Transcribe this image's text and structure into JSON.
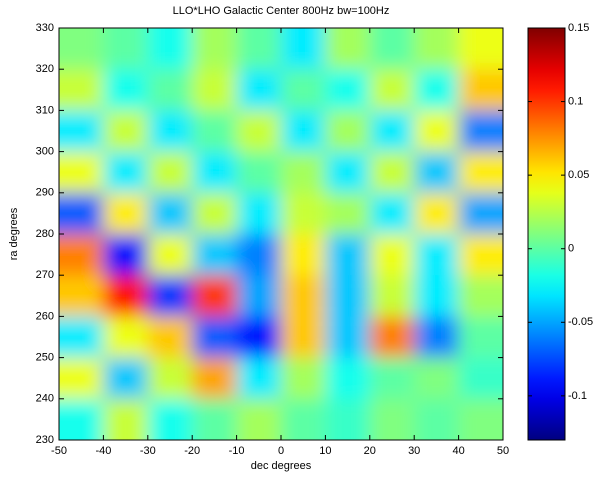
{
  "chart_data": {
    "type": "heatmap",
    "title": "LLO*LHO Galactic Center 800Hz bw=100Hz",
    "x_label": "dec degrees",
    "y_label": "ra degrees",
    "x": [
      -45,
      -35,
      -25,
      -15,
      -5,
      5,
      15,
      25,
      35,
      45
    ],
    "y": [
      235,
      245,
      255,
      265,
      275,
      285,
      295,
      305,
      315,
      325
    ],
    "z": [
      [
        -0.02,
        0.03,
        -0.02,
        0.0,
        0.02,
        0.0,
        -0.01,
        0.01,
        0.0,
        0.01
      ],
      [
        0.04,
        -0.04,
        0.03,
        0.07,
        -0.03,
        0.02,
        -0.02,
        0.0,
        0.01,
        -0.01
      ],
      [
        -0.03,
        0.04,
        0.06,
        -0.07,
        -0.09,
        0.06,
        -0.04,
        0.08,
        -0.06,
        0.0
      ],
      [
        0.06,
        0.11,
        -0.08,
        0.1,
        -0.05,
        0.06,
        -0.04,
        0.03,
        -0.03,
        0.02
      ],
      [
        0.08,
        -0.09,
        0.04,
        -0.04,
        -0.06,
        0.05,
        -0.04,
        0.04,
        -0.03,
        0.05
      ],
      [
        -0.07,
        0.05,
        -0.04,
        0.03,
        -0.03,
        0.03,
        0.02,
        -0.03,
        0.05,
        -0.05
      ],
      [
        0.04,
        -0.03,
        0.03,
        -0.03,
        0.0,
        0.02,
        -0.03,
        0.03,
        -0.04,
        0.05
      ],
      [
        -0.03,
        0.03,
        -0.03,
        0.0,
        0.03,
        -0.03,
        0.02,
        -0.03,
        0.04,
        -0.06
      ],
      [
        0.03,
        -0.02,
        0.0,
        0.03,
        -0.03,
        0.0,
        -0.02,
        0.03,
        -0.02,
        0.06
      ],
      [
        0.01,
        0.0,
        -0.02,
        0.02,
        0.0,
        -0.03,
        0.02,
        0.0,
        0.02,
        0.04
      ]
    ],
    "xlim": [
      -50,
      50
    ],
    "xticks": [
      -50,
      -40,
      -30,
      -20,
      -10,
      0,
      10,
      20,
      30,
      40,
      50
    ],
    "ylim": [
      230,
      330
    ],
    "yticks": [
      230,
      240,
      250,
      260,
      270,
      280,
      290,
      300,
      310,
      320,
      330
    ],
    "zlim": [
      -0.13,
      0.15
    ],
    "zticks": [
      -0.1,
      -0.05,
      0,
      0.05,
      0.1,
      0.15
    ],
    "colormap": "jet"
  }
}
